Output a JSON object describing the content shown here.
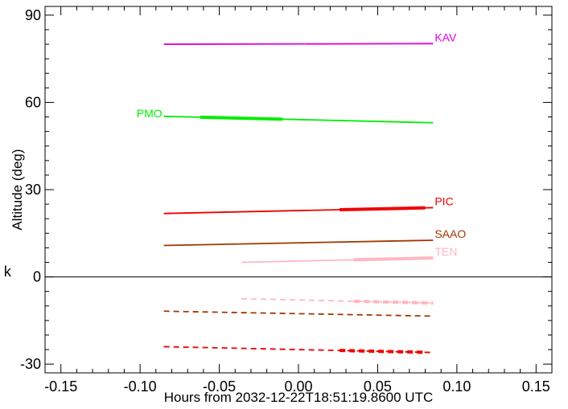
{
  "chart_data": {
    "type": "line",
    "title": "",
    "xlabel": "Hours from 2032-12-22T18:51:19.8600 UTC",
    "ylabel": "Altitude (deg)",
    "xlim": [
      -0.16,
      0.16
    ],
    "ylim": [
      -33,
      93
    ],
    "x_ticks": [
      -0.15,
      -0.1,
      -0.05,
      0.0,
      0.05,
      0.1,
      0.15
    ],
    "x_tick_labels": [
      "-0.15",
      "-0.10",
      "-0.05",
      "0.00",
      "0.05",
      "0.10",
      "0.15"
    ],
    "y_ticks": [
      -30,
      0,
      30,
      60,
      90
    ],
    "y_tick_labels": [
      "-30",
      "0",
      "30",
      "60",
      "90"
    ],
    "zero_line": 0,
    "grid": false,
    "stray_text": "k",
    "series": [
      {
        "name": "KAV",
        "color": "#e000e0",
        "style": "solid",
        "x": [
          -0.085,
          0.085
        ],
        "y": [
          80.0,
          80.2
        ],
        "thick": []
      },
      {
        "name": "PMO",
        "color": "#00ee00",
        "style": "solid",
        "x": [
          -0.085,
          0.085
        ],
        "y": [
          55.2,
          53.0
        ],
        "thick": [
          [
            -0.062,
            -0.01
          ]
        ]
      },
      {
        "name": "PIC",
        "color": "#ee0000",
        "style": "solid",
        "x": [
          -0.085,
          0.085
        ],
        "y": [
          21.8,
          23.8
        ],
        "thick": [
          [
            0.026,
            0.08
          ]
        ]
      },
      {
        "name": "SAAO",
        "color": "#a03800",
        "style": "solid",
        "x": [
          -0.085,
          0.085
        ],
        "y": [
          10.8,
          12.6
        ],
        "thick": []
      },
      {
        "name": "TEN",
        "color": "#ffb6c1",
        "style": "solid",
        "x": [
          -0.036,
          0.085
        ],
        "y": [
          5.0,
          6.5
        ],
        "thick": [
          [
            0.035,
            0.085
          ]
        ]
      },
      {
        "name": "",
        "color": "#ffb6c1",
        "style": "dashed",
        "x": [
          -0.036,
          0.085
        ],
        "y": [
          -7.5,
          -9.0
        ],
        "thick": [
          [
            0.035,
            0.085
          ]
        ]
      },
      {
        "name": "",
        "color": "#a03800",
        "style": "dashed",
        "x": [
          -0.085,
          0.085
        ],
        "y": [
          -11.8,
          -13.5
        ],
        "thick": []
      },
      {
        "name": "",
        "color": "#ee0000",
        "style": "dashed",
        "x": [
          -0.085,
          0.085
        ],
        "y": [
          -24.0,
          -26.0
        ],
        "thick": [
          [
            0.026,
            0.08
          ]
        ]
      }
    ]
  }
}
